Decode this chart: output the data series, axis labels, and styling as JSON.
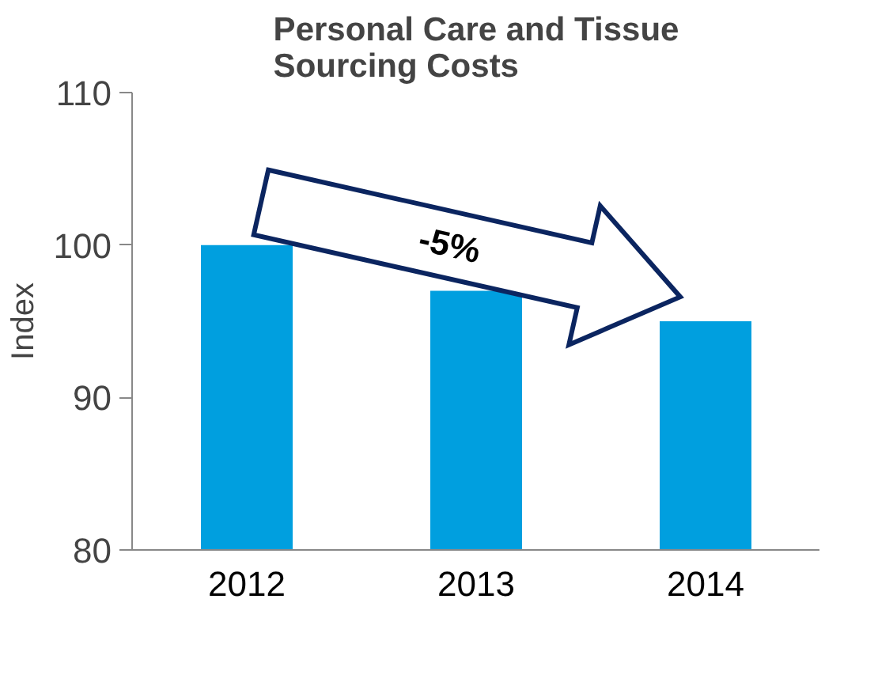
{
  "chart_data": {
    "type": "bar",
    "title": "Personal Care and Tissue\nSourcing Costs",
    "ylabel": "Index",
    "categories": [
      "2012",
      "2013",
      "2014"
    ],
    "values": [
      100,
      97,
      95
    ],
    "color": "#009fdf",
    "ylim": [
      80,
      110
    ],
    "yticks": [
      80,
      90,
      100,
      110
    ],
    "grid": false,
    "annotations": [
      "-5%"
    ]
  }
}
